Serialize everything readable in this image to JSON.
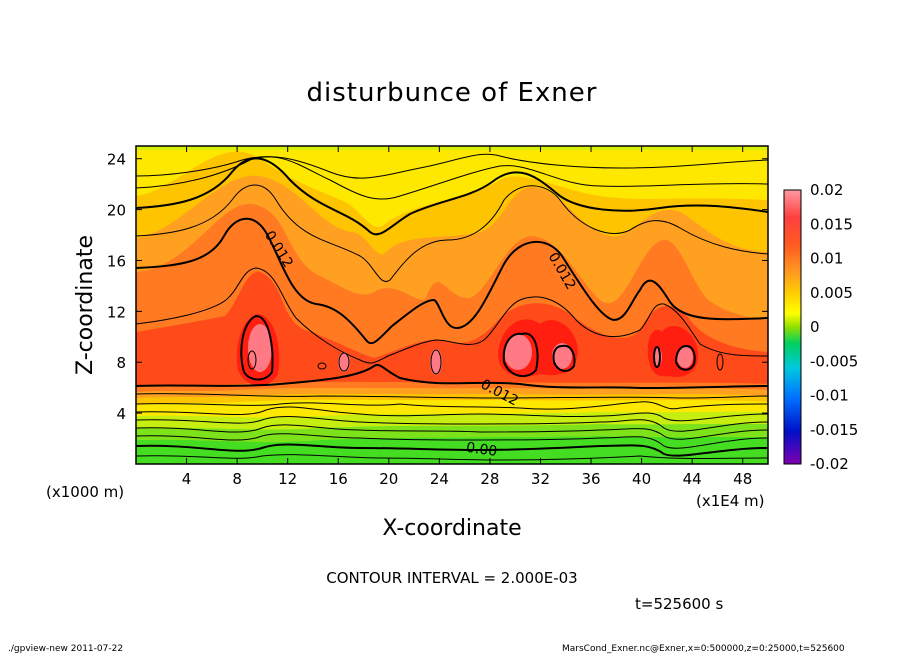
{
  "chart_data": {
    "type": "heatmap",
    "title": "disturbunce of Exner",
    "xlabel": "X-coordinate",
    "ylabel": "Z-coordinate",
    "x_unit_note": "(x1E4 m)",
    "y_unit_note": "(x1000 m)",
    "xlim": [
      0,
      50
    ],
    "ylim": [
      0,
      25
    ],
    "x_ticks": [
      "4",
      "8",
      "12",
      "16",
      "20",
      "24",
      "28",
      "32",
      "36",
      "40",
      "44",
      "48"
    ],
    "x_tick_values": [
      4,
      8,
      12,
      16,
      20,
      24,
      28,
      32,
      36,
      40,
      44,
      48
    ],
    "y_ticks": [
      "4",
      "8",
      "12",
      "16",
      "20",
      "24"
    ],
    "y_tick_values": [
      4,
      8,
      12,
      16,
      20,
      24
    ],
    "colorbar": {
      "labels": [
        "0.02",
        "0.015",
        "0.01",
        "0.005",
        "0",
        "-0.005",
        "-0.01",
        "-0.015",
        "-0.02"
      ],
      "values": [
        0.02,
        0.015,
        0.01,
        0.005,
        0,
        -0.005,
        -0.01,
        -0.015,
        -0.02
      ],
      "colors": [
        "#ff9aa2",
        "#ff6060",
        "#ff2a1a",
        "#ff5a20",
        "#ff8a20",
        "#ffb000",
        "#ffd800",
        "#ffff00",
        "#ccf000",
        "#8ee000",
        "#33d400",
        "#00d060",
        "#00d0a0",
        "#00c8e0",
        "#00a0ff",
        "#0070ff",
        "#0040f0",
        "#0010c8",
        "#3a00c0",
        "#8000b0"
      ]
    },
    "contour_labels": [
      {
        "text": "0.012",
        "x": 11.0,
        "y": 16.7,
        "angle": 58
      },
      {
        "text": "0.012",
        "x": 33.4,
        "y": 15.0,
        "angle": 60
      },
      {
        "text": "0.012",
        "x": 28.6,
        "y": 5.3,
        "angle": 28
      },
      {
        "text": "0.00",
        "x": 27.3,
        "y": 0.8,
        "angle": 8
      }
    ],
    "annotation_lines": [
      "CONTOUR INTERVAL = 2.000E-03",
      "t=525600 s"
    ]
  },
  "footer": {
    "left": "./gpview-new  2011-07-22",
    "right": "MarsCond_Exner.nc@Exner,x=0:500000,z=0:25000,t=525600"
  }
}
